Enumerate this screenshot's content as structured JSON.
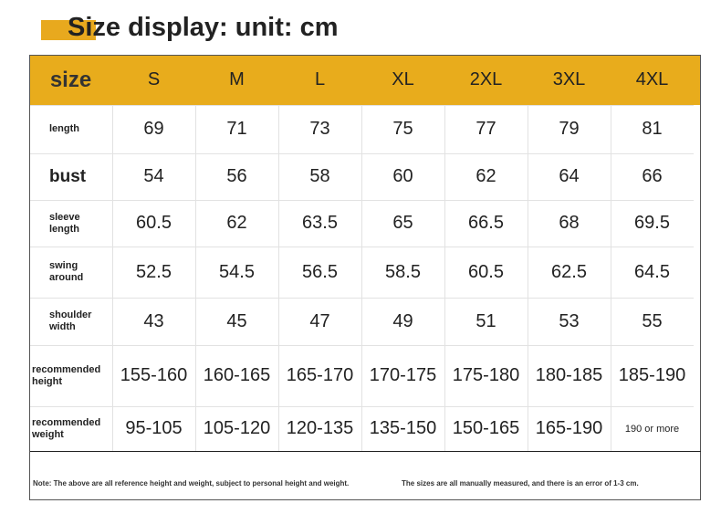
{
  "header": {
    "title": "Size display: unit: cm"
  },
  "table": {
    "columns": [
      "size",
      "S",
      "M",
      "L",
      "XL",
      "2XL",
      "3XL",
      "4XL"
    ],
    "rows": [
      {
        "label": "length",
        "values": [
          "69",
          "71",
          "73",
          "75",
          "77",
          "79",
          "81"
        ]
      },
      {
        "label": "bust",
        "values": [
          "54",
          "56",
          "58",
          "60",
          "62",
          "64",
          "66"
        ]
      },
      {
        "label": "sleeve length",
        "values": [
          "60.5",
          "62",
          "63.5",
          "65",
          "66.5",
          "68",
          "69.5"
        ]
      },
      {
        "label": "swing around",
        "values": [
          "52.5",
          "54.5",
          "56.5",
          "58.5",
          "60.5",
          "62.5",
          "64.5"
        ]
      },
      {
        "label": "shoulder width",
        "values": [
          "43",
          "45",
          "47",
          "49",
          "51",
          "53",
          "55"
        ]
      },
      {
        "label": "recommended height",
        "values": [
          "155-160",
          "160-165",
          "165-170",
          "170-175",
          "175-180",
          "180-185",
          "185-190"
        ]
      },
      {
        "label": "recommended weight",
        "values": [
          "95-105",
          "105-120",
          "120-135",
          "135-150",
          "150-165",
          "165-190",
          "190 or more"
        ]
      }
    ]
  },
  "notes": {
    "left": "Note: The above are all reference height and weight, subject to personal height and weight.",
    "right": "The sizes are all manually measured, and there is an error of 1-3 cm."
  }
}
